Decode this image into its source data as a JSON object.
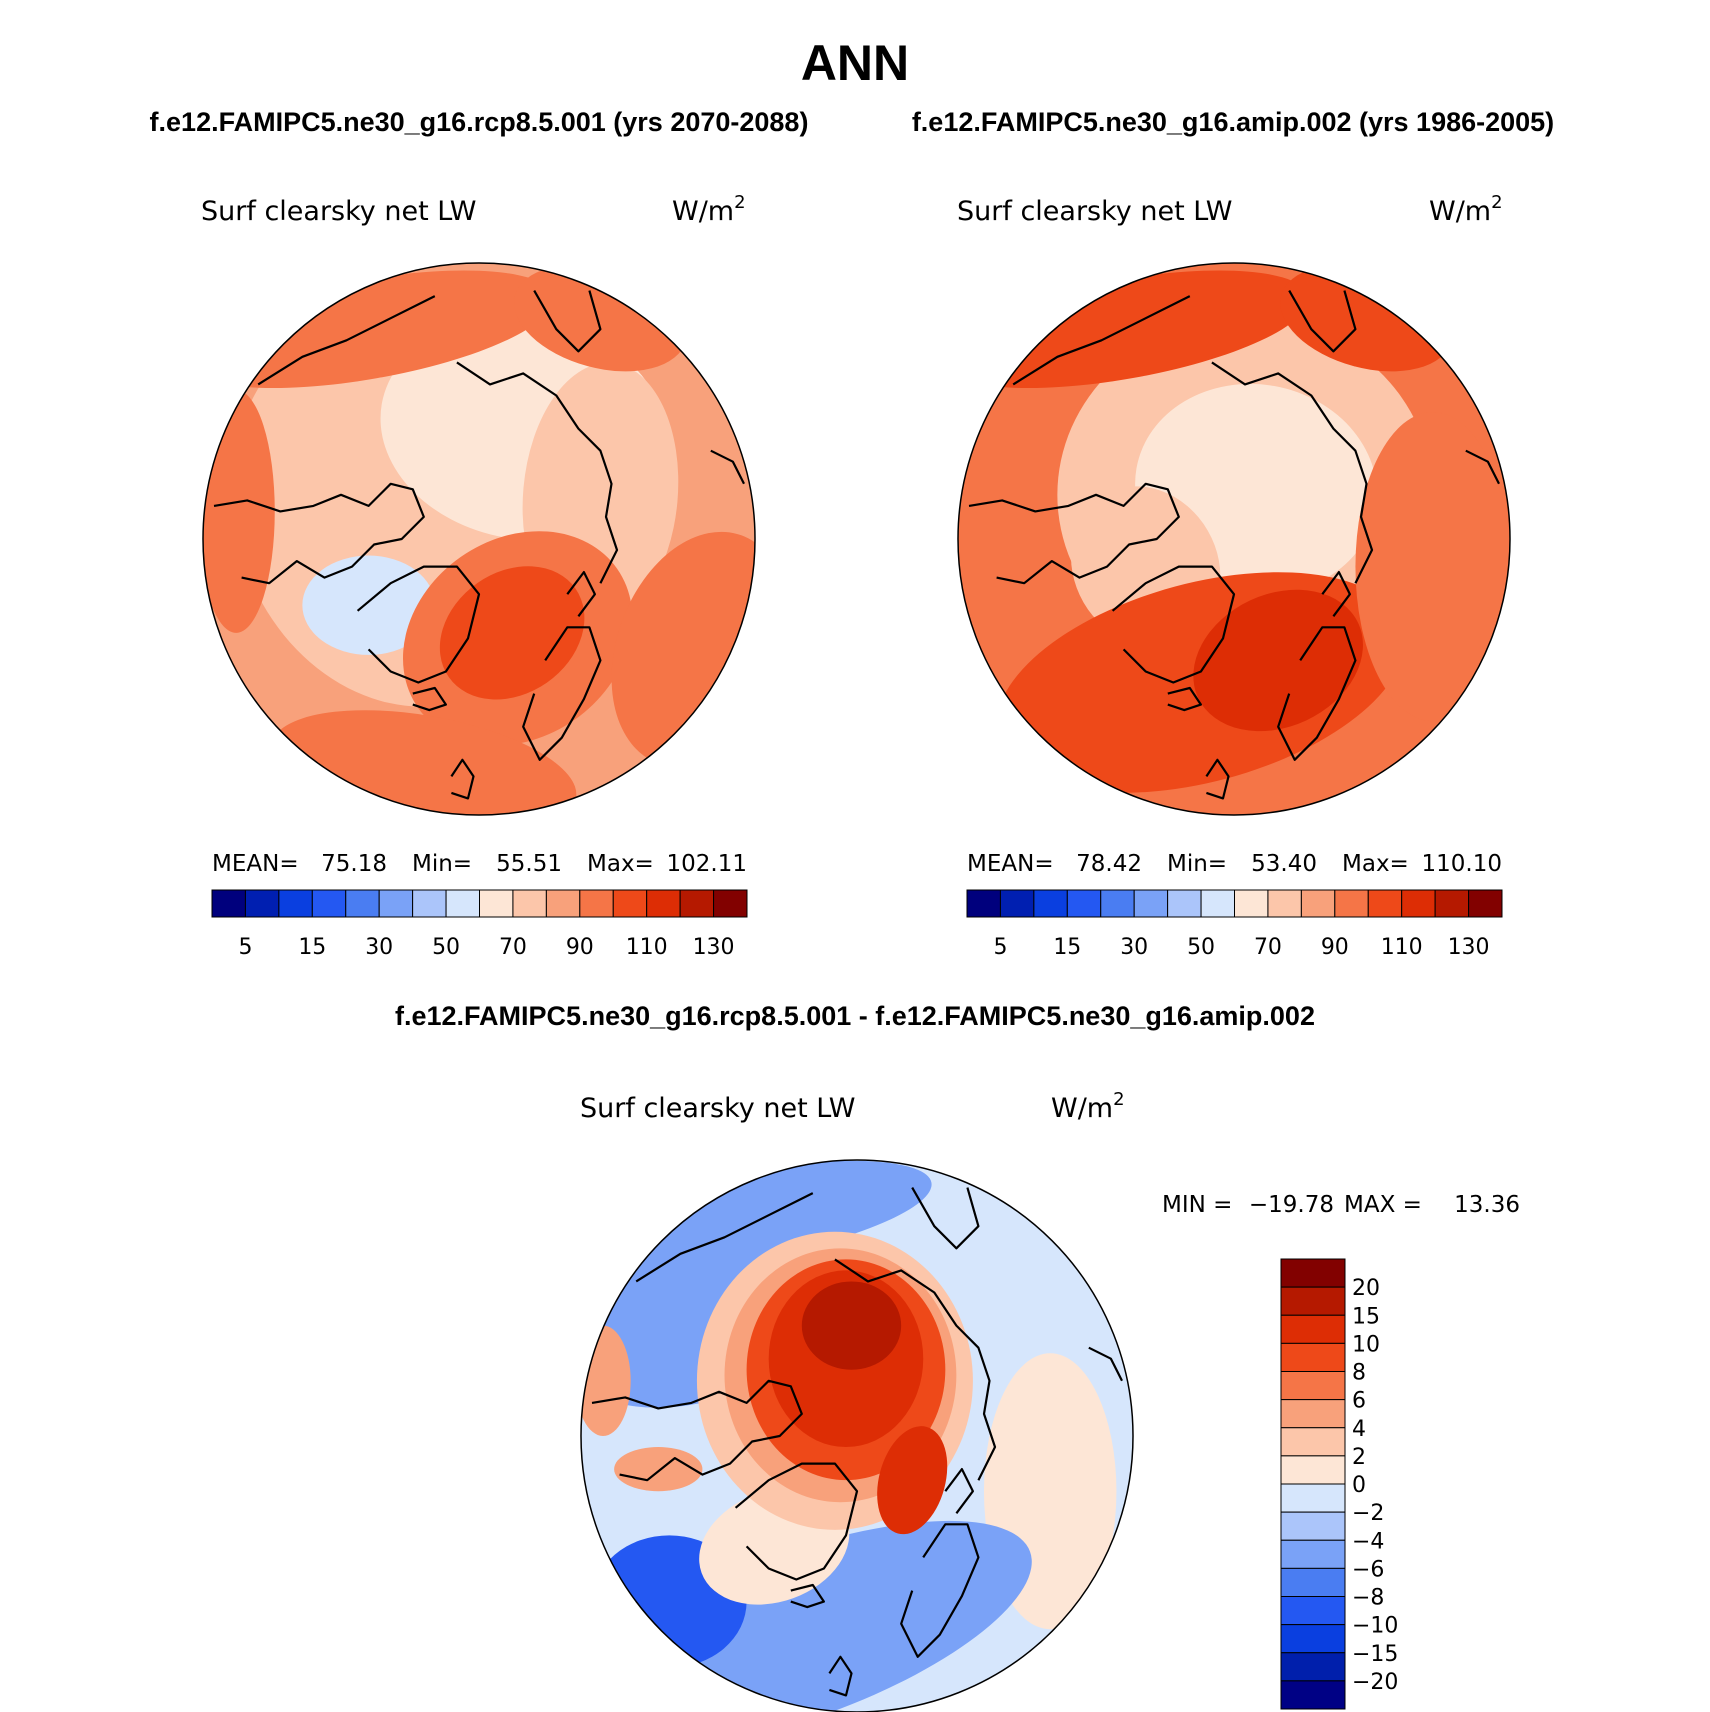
{
  "chart_data": {
    "type": "polar-contour-maps",
    "title": "ANN",
    "panels": [
      {
        "id": "case",
        "subtitle": "f.e12.FAMIPC5.ne30_g16.rcp8.5.001 (yrs 2070-2088)",
        "variable": "Surf clearsky net LW",
        "units": "W/m",
        "units_exp": "2",
        "stats": {
          "mean_label": "MEAN=",
          "mean": "75.18",
          "min_label": "Min=",
          "min": "55.51",
          "max_label": "Max=",
          "max": "102.11"
        },
        "levels": [
          5,
          10,
          15,
          20,
          30,
          40,
          50,
          60,
          70,
          80,
          90,
          100,
          110,
          120,
          130
        ],
        "tick_labels": [
          "5",
          "15",
          "30",
          "50",
          "70",
          "90",
          "110",
          "130"
        ],
        "field": {
          "base": 2,
          "blobs": [
            {
              "x": 0.36,
              "y": 0.45,
              "rx": 0.3,
              "ry": 0.36,
              "lev": 1,
              "rot": -20
            },
            {
              "x": 0.58,
              "y": 0.3,
              "rx": 0.26,
              "ry": 0.2,
              "lev": 0,
              "rot": 10
            },
            {
              "x": 0.72,
              "y": 0.42,
              "rx": 0.14,
              "ry": 0.24,
              "lev": 1,
              "rot": 5
            },
            {
              "x": 0.3,
              "y": 0.62,
              "rx": 0.12,
              "ry": 0.09,
              "lev": -1,
              "rot": 0
            },
            {
              "x": 0.57,
              "y": 0.68,
              "rx": 0.22,
              "ry": 0.18,
              "lev": 3,
              "rot": -35
            },
            {
              "x": 0.56,
              "y": 0.67,
              "rx": 0.14,
              "ry": 0.11,
              "lev": 4,
              "rot": -35
            },
            {
              "x": 0.3,
              "y": 0.12,
              "rx": 0.34,
              "ry": 0.09,
              "lev": 3,
              "rot": -10
            },
            {
              "x": 0.72,
              "y": 0.1,
              "rx": 0.16,
              "ry": 0.09,
              "lev": 3,
              "rot": 15
            },
            {
              "x": 0.06,
              "y": 0.45,
              "rx": 0.07,
              "ry": 0.22,
              "lev": 3,
              "rot": 0
            },
            {
              "x": 0.9,
              "y": 0.7,
              "rx": 0.15,
              "ry": 0.22,
              "lev": 3,
              "rot": 20
            },
            {
              "x": 0.4,
              "y": 0.92,
              "rx": 0.28,
              "ry": 0.1,
              "lev": 3,
              "rot": 10
            }
          ]
        }
      },
      {
        "id": "control",
        "subtitle": "f.e12.FAMIPC5.ne30_g16.amip.002 (yrs 1986-2005)",
        "variable": "Surf clearsky net LW",
        "units": "W/m",
        "units_exp": "2",
        "stats": {
          "mean_label": "MEAN=",
          "mean": "78.42",
          "min_label": "Min=",
          "min": "53.40",
          "max_label": "Max=",
          "max": "110.10"
        },
        "levels": [
          5,
          10,
          15,
          20,
          30,
          40,
          50,
          60,
          70,
          80,
          90,
          100,
          110,
          120,
          130
        ],
        "tick_labels": [
          "5",
          "15",
          "30",
          "50",
          "70",
          "90",
          "110",
          "130"
        ],
        "field": {
          "base": 3,
          "blobs": [
            {
              "x": 0.52,
              "y": 0.42,
              "rx": 0.34,
              "ry": 0.32,
              "lev": 1,
              "rot": 0
            },
            {
              "x": 0.54,
              "y": 0.41,
              "rx": 0.22,
              "ry": 0.19,
              "lev": 0,
              "rot": 10
            },
            {
              "x": 0.34,
              "y": 0.55,
              "rx": 0.13,
              "ry": 0.15,
              "lev": 1,
              "rot": -30
            },
            {
              "x": 0.44,
              "y": 0.76,
              "rx": 0.38,
              "ry": 0.18,
              "lev": 4,
              "rot": -15
            },
            {
              "x": 0.58,
              "y": 0.72,
              "rx": 0.16,
              "ry": 0.12,
              "lev": 5,
              "rot": -25
            },
            {
              "x": 0.3,
              "y": 0.12,
              "rx": 0.34,
              "ry": 0.09,
              "lev": 4,
              "rot": -10
            },
            {
              "x": 0.74,
              "y": 0.1,
              "rx": 0.16,
              "ry": 0.09,
              "lev": 4,
              "rot": 15
            },
            {
              "x": 0.86,
              "y": 0.55,
              "rx": 0.14,
              "ry": 0.28,
              "lev": 3,
              "rot": 0
            }
          ]
        }
      },
      {
        "id": "diff",
        "subtitle": "f.e12.FAMIPC5.ne30_g16.rcp8.5.001 - f.e12.FAMIPC5.ne30_g16.amip.002",
        "variable": "Surf clearsky net LW",
        "units": "W/m",
        "units_exp": "2",
        "stats": {
          "min_label": "MIN =",
          "min": "−19.78",
          "max_label": "MAX =",
          "max": "13.36"
        },
        "levels": [
          -20,
          -15,
          -10,
          -8,
          -6,
          -4,
          -2,
          0,
          2,
          4,
          6,
          8,
          10,
          15,
          20
        ],
        "tick_labels": [
          "20",
          "15",
          "10",
          "8",
          "6",
          "4",
          "2",
          "0",
          "−2",
          "−4",
          "−6",
          "−8",
          "−10",
          "−15",
          "−20"
        ],
        "field": {
          "base": 5,
          "blobs": [
            {
              "x": 0.2,
              "y": 0.28,
              "rx": 0.26,
              "ry": 0.16,
              "lev": 3,
              "rot": -15
            },
            {
              "x": 0.3,
              "y": 0.1,
              "rx": 0.34,
              "ry": 0.08,
              "lev": 3,
              "rot": -10
            },
            {
              "x": 0.85,
              "y": 0.6,
              "rx": 0.12,
              "ry": 0.25,
              "lev": 6,
              "rot": 0
            },
            {
              "x": 0.4,
              "y": 0.86,
              "rx": 0.44,
              "ry": 0.15,
              "lev": 3,
              "rot": -20
            },
            {
              "x": 0.16,
              "y": 0.8,
              "rx": 0.14,
              "ry": 0.12,
              "lev": 1,
              "rot": 0
            },
            {
              "x": 0.35,
              "y": 0.7,
              "rx": 0.14,
              "ry": 0.1,
              "lev": 6,
              "rot": -20
            },
            {
              "x": 0.46,
              "y": 0.4,
              "rx": 0.25,
              "ry": 0.27,
              "lev": 7,
              "rot": 0
            },
            {
              "x": 0.47,
              "y": 0.39,
              "rx": 0.21,
              "ry": 0.23,
              "lev": 8,
              "rot": 0
            },
            {
              "x": 0.48,
              "y": 0.38,
              "rx": 0.18,
              "ry": 0.2,
              "lev": 10,
              "rot": 0
            },
            {
              "x": 0.48,
              "y": 0.36,
              "rx": 0.14,
              "ry": 0.16,
              "lev": 11,
              "rot": 0
            },
            {
              "x": 0.49,
              "y": 0.3,
              "rx": 0.09,
              "ry": 0.08,
              "lev": 12,
              "rot": 0
            },
            {
              "x": 0.6,
              "y": 0.58,
              "rx": 0.06,
              "ry": 0.1,
              "lev": 11,
              "rot": 15
            },
            {
              "x": 0.14,
              "y": 0.56,
              "rx": 0.08,
              "ry": 0.04,
              "lev": 8,
              "rot": 0
            },
            {
              "x": 0.04,
              "y": 0.4,
              "rx": 0.05,
              "ry": 0.1,
              "lev": 8,
              "rot": 0
            }
          ]
        }
      }
    ],
    "palette": {
      "rainbow_case": [
        "#00007d",
        "#001fb1",
        "#0a3fe0",
        "#2458f2",
        "#4a7df2",
        "#7aa2f7",
        "#abc5fa",
        "#d6e6fc",
        "#fde6d6",
        "#fcc6aa",
        "#f8a17b",
        "#f57547",
        "#ee4919",
        "#dd2d05",
        "#b51900",
        "#820100"
      ],
      "diff": [
        "#000185",
        "#001fac",
        "#0a3fe0",
        "#2458f2",
        "#4a7df2",
        "#7aa2f7",
        "#abc5fa",
        "#d6e6fc",
        "#fde6d6",
        "#fcc6aa",
        "#f8a17b",
        "#f57547",
        "#ee4919",
        "#dd2d05",
        "#b51900",
        "#820100"
      ]
    },
    "coastline_color": "#000000"
  }
}
